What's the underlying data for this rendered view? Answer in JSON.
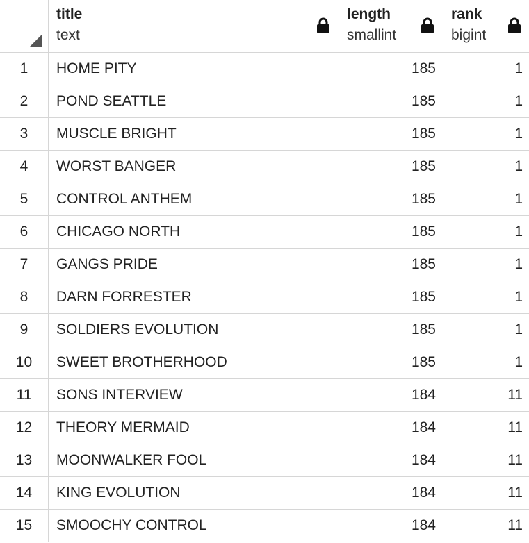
{
  "columns": [
    {
      "name": "title",
      "type": "text"
    },
    {
      "name": "length",
      "type": "smallint"
    },
    {
      "name": "rank",
      "type": "bigint"
    }
  ],
  "icons": {
    "column_lock": "lock-icon",
    "corner": "select-all-triangle-icon"
  },
  "rows": [
    {
      "num": "1",
      "title": "HOME PITY",
      "length": "185",
      "rank": "1"
    },
    {
      "num": "2",
      "title": "POND SEATTLE",
      "length": "185",
      "rank": "1"
    },
    {
      "num": "3",
      "title": "MUSCLE BRIGHT",
      "length": "185",
      "rank": "1"
    },
    {
      "num": "4",
      "title": "WORST BANGER",
      "length": "185",
      "rank": "1"
    },
    {
      "num": "5",
      "title": "CONTROL ANTHEM",
      "length": "185",
      "rank": "1"
    },
    {
      "num": "6",
      "title": "CHICAGO NORTH",
      "length": "185",
      "rank": "1"
    },
    {
      "num": "7",
      "title": "GANGS PRIDE",
      "length": "185",
      "rank": "1"
    },
    {
      "num": "8",
      "title": "DARN FORRESTER",
      "length": "185",
      "rank": "1"
    },
    {
      "num": "9",
      "title": "SOLDIERS EVOLUTION",
      "length": "185",
      "rank": "1"
    },
    {
      "num": "10",
      "title": "SWEET BROTHERHOOD",
      "length": "185",
      "rank": "1"
    },
    {
      "num": "11",
      "title": "SONS INTERVIEW",
      "length": "184",
      "rank": "11"
    },
    {
      "num": "12",
      "title": "THEORY MERMAID",
      "length": "184",
      "rank": "11"
    },
    {
      "num": "13",
      "title": "MOONWALKER FOOL",
      "length": "184",
      "rank": "11"
    },
    {
      "num": "14",
      "title": "KING EVOLUTION",
      "length": "184",
      "rank": "11"
    },
    {
      "num": "15",
      "title": "SMOOCHY CONTROL",
      "length": "184",
      "rank": "11"
    }
  ]
}
